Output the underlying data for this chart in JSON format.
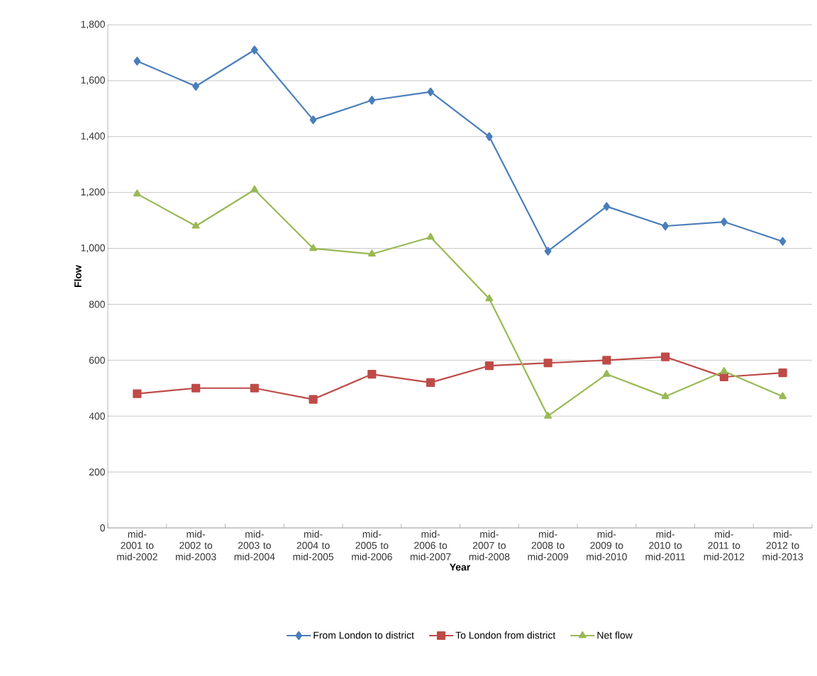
{
  "chart_data": {
    "type": "line",
    "xlabel": "Year",
    "ylabel": "Flow",
    "categories": [
      "mid-2001 to mid-2002",
      "mid-2002 to mid-2003",
      "mid-2003 to mid-2004",
      "mid-2004 to mid-2005",
      "mid-2005 to mid-2006",
      "mid-2006 to mid-2007",
      "mid-2007 to mid-2008",
      "mid-2008 to mid-2009",
      "mid-2009 to mid-2010",
      "mid-2010 to mid-2011",
      "mid-2011 to mid-2012",
      "mid-2012 to mid-2013"
    ],
    "series": [
      {
        "name": "From London to district",
        "color": "#4a7ebb",
        "marker": "diamond",
        "values": [
          1670,
          1580,
          1710,
          1460,
          1530,
          1560,
          1400,
          990,
          1150,
          1080,
          1095,
          1025
        ]
      },
      {
        "name": "To London from district",
        "color": "#be4b48",
        "marker": "square",
        "values": [
          480,
          500,
          500,
          460,
          550,
          520,
          580,
          590,
          600,
          612,
          540,
          555
        ]
      },
      {
        "name": "Net flow",
        "color": "#98b954",
        "marker": "triangle",
        "values": [
          1195,
          1080,
          1210,
          1000,
          980,
          1040,
          820,
          400,
          550,
          470,
          560,
          470
        ]
      }
    ],
    "ylim": [
      0,
      1800
    ],
    "yticks": [
      {
        "value": 0,
        "label": "0"
      },
      {
        "value": 200,
        "label": "200"
      },
      {
        "value": 400,
        "label": "400"
      },
      {
        "value": 600,
        "label": "600"
      },
      {
        "value": 800,
        "label": "800"
      },
      {
        "value": 1000,
        "label": "1,000"
      },
      {
        "value": 1200,
        "label": "1,200"
      },
      {
        "value": 1400,
        "label": "1,400"
      },
      {
        "value": 1600,
        "label": "1,600"
      },
      {
        "value": 1800,
        "label": "1,800"
      }
    ],
    "grid": "y",
    "legend": "bottom",
    "line_style": "solid"
  }
}
